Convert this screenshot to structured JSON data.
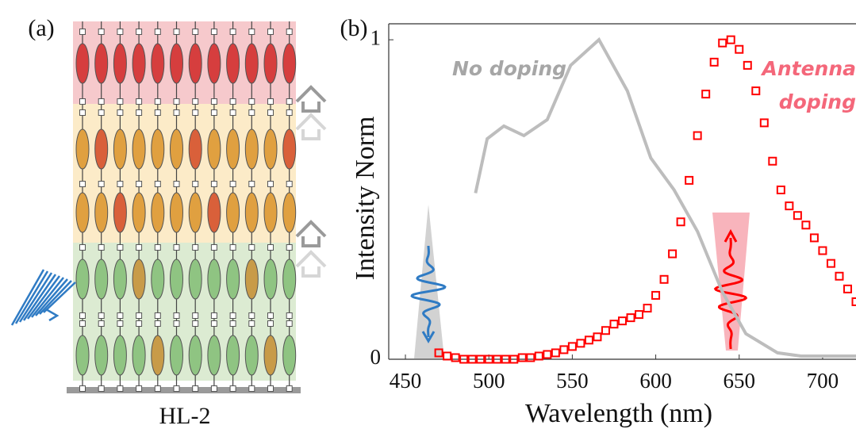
{
  "panel_a": {
    "label": "(a)",
    "caption": "HL-2"
  },
  "chart_data": {
    "type": "scatter-line",
    "label": "(b)",
    "xlabel": "Wavelength (nm)",
    "ylabel": "Intensity Norm",
    "xlim": [
      440,
      720
    ],
    "ylim": [
      0,
      1.05
    ],
    "xticks": [
      450,
      500,
      550,
      600,
      650,
      700
    ],
    "yticks": [
      0,
      1
    ],
    "series": [
      {
        "color": "#ff0000",
        "marker": "square",
        "x": [
          470,
          475,
          480,
          485,
          490,
          495,
          500,
          505,
          510,
          515,
          520,
          525,
          530,
          535,
          540,
          545,
          550,
          555,
          560,
          565,
          570,
          575,
          580,
          585,
          590,
          595,
          600,
          605,
          610,
          615,
          620,
          625,
          630,
          635,
          640,
          645,
          650,
          655,
          660,
          665,
          670,
          675,
          680,
          685,
          690,
          695,
          700,
          705,
          710,
          715,
          720
        ],
        "values": [
          0.02,
          0.01,
          0.005,
          0,
          0,
          0,
          0,
          0,
          0,
          0,
          0.005,
          0.005,
          0.01,
          0.015,
          0.02,
          0.03,
          0.04,
          0.05,
          0.06,
          0.07,
          0.09,
          0.11,
          0.12,
          0.13,
          0.14,
          0.16,
          0.2,
          0.25,
          0.33,
          0.43,
          0.56,
          0.7,
          0.83,
          0.93,
          0.99,
          1.0,
          0.97,
          0.92,
          0.84,
          0.74,
          0.62,
          0.53,
          0.48,
          0.45,
          0.42,
          0.38,
          0.34,
          0.3,
          0.26,
          0.22,
          0.18
        ]
      },
      {
        "color": "#bdbdbd",
        "marker": "line",
        "x": [
          492,
          499,
          509,
          521,
          535,
          549,
          566,
          583,
          597,
          611,
          625,
          640,
          654,
          673,
          687,
          720
        ],
        "values": [
          0.52,
          0.69,
          0.73,
          0.7,
          0.75,
          0.92,
          1.0,
          0.84,
          0.63,
          0.53,
          0.4,
          0.21,
          0.08,
          0.02,
          0.01,
          0.01
        ]
      }
    ],
    "annotations": [
      {
        "text": "No doping",
        "color": "#a6a6a6"
      },
      {
        "text": "Antenna",
        "color": "#f4677a"
      },
      {
        "text": "doping",
        "color": "#f4677a"
      }
    ]
  }
}
